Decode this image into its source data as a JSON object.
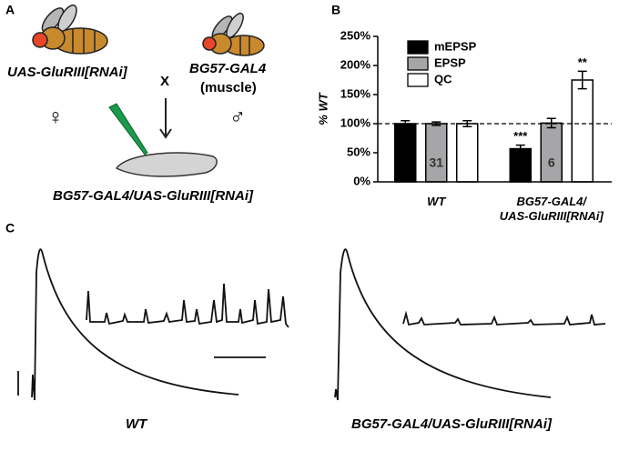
{
  "panel_labels": [
    "A",
    "B",
    "C"
  ],
  "panel_a": {
    "parent_left": "UAS-GluRIII[RNAi]",
    "cross": "X",
    "parent_right": "BG57-GAL4",
    "parent_right_note": "(muscle)",
    "female": "♀",
    "male": "♂",
    "progeny": "BG57-GAL4/UAS-GluRIII[RNAi]"
  },
  "panel_c": {
    "left_label": "WT",
    "right_label": "BG57-GAL4/UAS-GluRIII[RNAi]"
  },
  "chart_data": {
    "type": "bar",
    "ylabel": "% WT",
    "categories": [
      "WT",
      "BG57-GAL4/\nUAS-GluRIII[RNAi]"
    ],
    "series": [
      {
        "name": "mEPSP",
        "color": "#000000",
        "values": [
          100,
          57
        ],
        "errors": [
          5,
          6
        ],
        "significance": [
          null,
          "***"
        ]
      },
      {
        "name": "EPSP",
        "color": "#a6a6a8",
        "values": [
          100,
          101
        ],
        "errors": [
          3,
          8
        ],
        "n_labels": [
          "31",
          "6"
        ]
      },
      {
        "name": "QC",
        "color": "#ffffff",
        "values": [
          100,
          175
        ],
        "errors": [
          5,
          15
        ],
        "significance": [
          null,
          "**"
        ]
      }
    ],
    "ylim": [
      0,
      250
    ],
    "yticks": [
      {
        "value": 0,
        "label": "0%"
      },
      {
        "value": 50,
        "label": "50%"
      },
      {
        "value": 100,
        "label": "100%"
      },
      {
        "value": 150,
        "label": "150%"
      },
      {
        "value": 200,
        "label": "200%"
      },
      {
        "value": 250,
        "label": "250%"
      }
    ],
    "reference_line": 100,
    "legend": "upper left"
  }
}
